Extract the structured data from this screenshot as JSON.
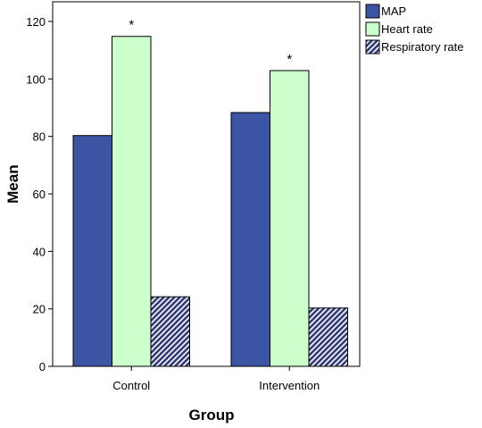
{
  "chart_data": {
    "type": "bar",
    "categories": [
      "Control",
      "Intervention"
    ],
    "series": [
      {
        "name": "MAP",
        "values": [
          80.3,
          88.3
        ],
        "color": "#3b54a4",
        "pattern": "solid"
      },
      {
        "name": "Heart rate",
        "values": [
          114.8,
          102.9
        ],
        "color": "#ccffcc",
        "pattern": "solid"
      },
      {
        "name": "Respiratory rate",
        "values": [
          24.2,
          20.3
        ],
        "color": "#333b7a",
        "pattern": "diagonal-hatch"
      }
    ],
    "annotations": [
      {
        "category": "Control",
        "series": "Heart rate",
        "text": "*"
      },
      {
        "category": "Intervention",
        "series": "Heart rate",
        "text": "*"
      }
    ],
    "xlabel": "Group",
    "ylabel": "Mean",
    "ylim": [
      0,
      120
    ],
    "yticks": [
      0,
      20,
      40,
      60,
      80,
      100,
      120
    ],
    "grid": false,
    "legend_position": "top-right"
  }
}
